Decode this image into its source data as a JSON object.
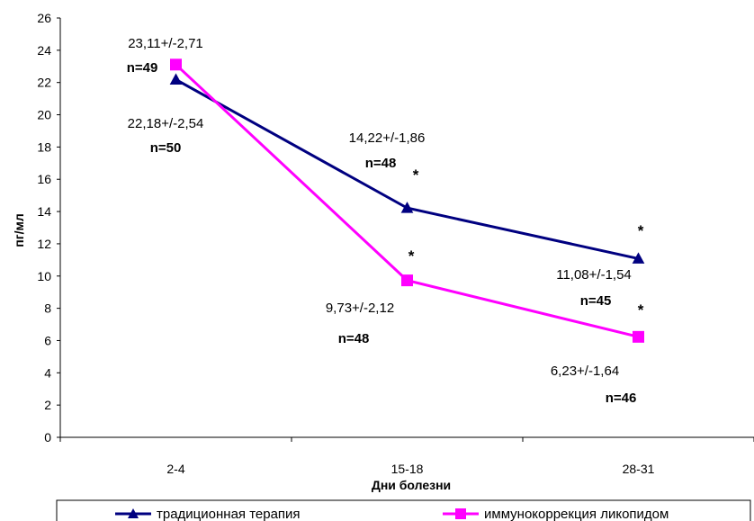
{
  "chart_data": {
    "type": "line",
    "title": "",
    "xlabel": "Дни болезни",
    "ylabel": "пг/мл",
    "categories": [
      "2-4",
      "15-18",
      "28-31"
    ],
    "ylim": [
      0,
      26
    ],
    "yticks": [
      0,
      2,
      4,
      6,
      8,
      10,
      12,
      14,
      16,
      18,
      20,
      22,
      24,
      26
    ],
    "grid": false,
    "legend_position": "bottom",
    "series": [
      {
        "name": "традиционная терапия",
        "color": "#000080",
        "marker": "triangle",
        "values": [
          22.18,
          14.22,
          11.08
        ],
        "labels": [
          "22,18+/-2,54",
          "14,22+/-1,86",
          "11,08+/-1,54"
        ],
        "n_labels": [
          "n=50",
          "n=48",
          "n=45"
        ],
        "significance": [
          "",
          "*",
          "*"
        ]
      },
      {
        "name": "иммунокоррекция ликопидом",
        "color": "#ff00ff",
        "marker": "square",
        "values": [
          23.11,
          9.73,
          6.23
        ],
        "labels": [
          "23,11+/-2,71",
          "9,73+/-2,12",
          "6,23+/-1,64"
        ],
        "n_labels": [
          "n=49",
          "n=48",
          "n=46"
        ],
        "significance": [
          "",
          "*",
          "*"
        ]
      }
    ]
  }
}
